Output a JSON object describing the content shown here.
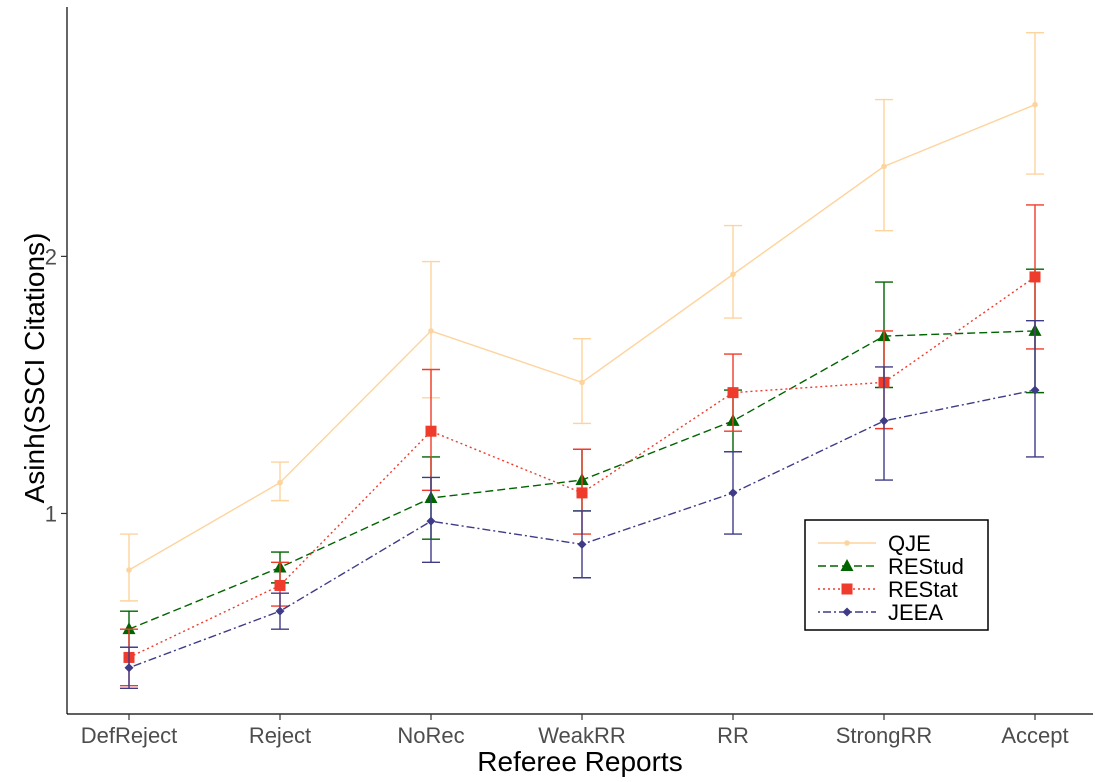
{
  "chart_data": {
    "type": "line",
    "xlabel": "Referee Reports",
    "ylabel": "Asinh(SSCI Citations)",
    "categories": [
      "DefReject",
      "Reject",
      "NoRec",
      "WeakRR",
      "RR",
      "StrongRR",
      "Accept"
    ],
    "ylim": [
      0.22,
      2.97
    ],
    "yticks": [
      1,
      2
    ],
    "grid": false,
    "legend_position": "bottom-right",
    "series": [
      {
        "name": "QJE",
        "color": "#fdd49e",
        "marker": "circle-small",
        "dash": "solid",
        "values": [
          0.78,
          1.12,
          1.71,
          1.51,
          1.93,
          2.35,
          2.59
        ],
        "err_low": [
          0.66,
          1.05,
          1.45,
          1.35,
          1.76,
          2.1,
          2.32
        ],
        "err_high": [
          0.92,
          1.2,
          1.98,
          1.68,
          2.12,
          2.61,
          2.87
        ]
      },
      {
        "name": "REStud",
        "color": "#006400",
        "marker": "triangle",
        "dash": "dashed",
        "values": [
          0.55,
          0.79,
          1.06,
          1.13,
          1.36,
          1.69,
          1.71
        ],
        "err_low": [
          0.48,
          0.73,
          0.9,
          1.01,
          1.24,
          1.49,
          1.47
        ],
        "err_high": [
          0.62,
          0.85,
          1.22,
          1.25,
          1.48,
          1.9,
          1.95
        ]
      },
      {
        "name": "REStat",
        "color": "#ef3b2c",
        "marker": "square",
        "dash": "dotted",
        "values": [
          0.44,
          0.72,
          1.32,
          1.08,
          1.47,
          1.51,
          1.92
        ],
        "err_low": [
          0.33,
          0.64,
          1.09,
          0.92,
          1.32,
          1.33,
          1.64
        ],
        "err_high": [
          0.55,
          0.81,
          1.56,
          1.25,
          1.62,
          1.71,
          2.2
        ]
      },
      {
        "name": "JEEA",
        "color": "#3f3b87",
        "marker": "diamond",
        "dash": "dotdash",
        "values": [
          0.4,
          0.62,
          0.97,
          0.88,
          1.08,
          1.36,
          1.48
        ],
        "err_low": [
          0.32,
          0.55,
          0.81,
          0.75,
          0.92,
          1.13,
          1.22
        ],
        "err_high": [
          0.48,
          0.69,
          1.14,
          1.01,
          1.24,
          1.57,
          1.75
        ]
      }
    ]
  }
}
